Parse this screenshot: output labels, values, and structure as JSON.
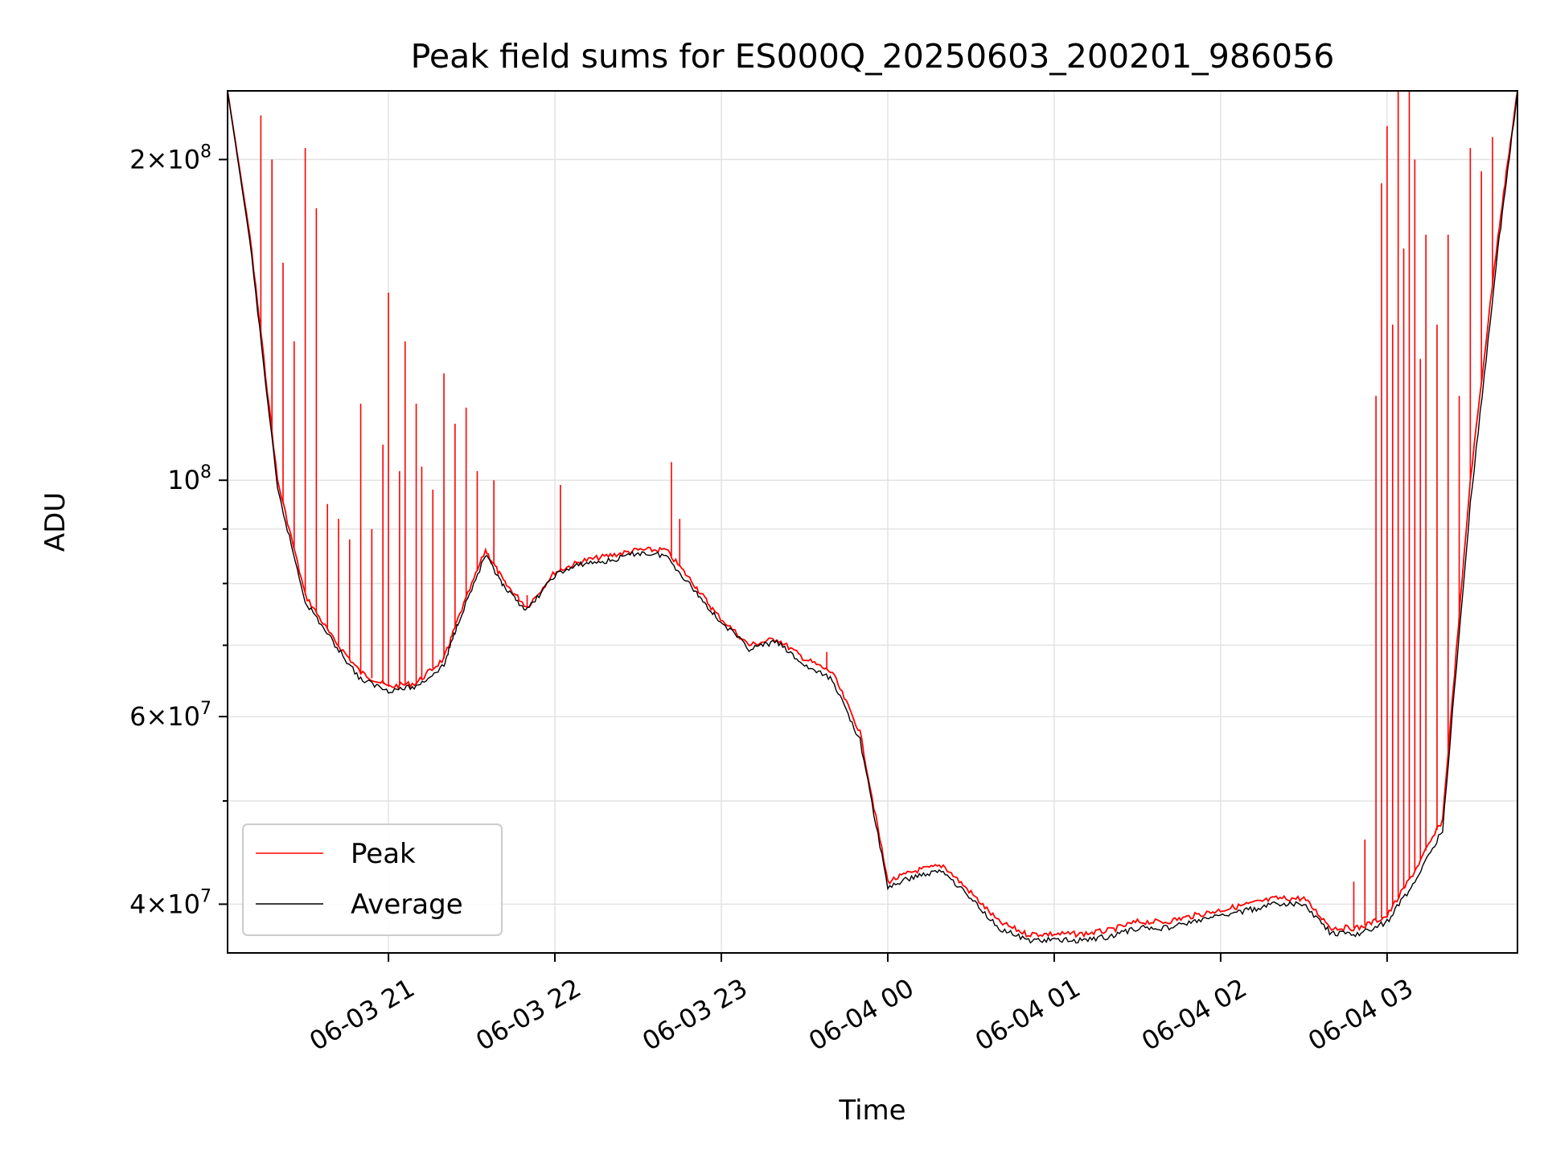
{
  "chart_data": {
    "type": "line",
    "title": "Peak field sums for ES000Q_20250603_200201_986056",
    "xlabel": "Time",
    "ylabel": "ADU",
    "yscale": "log",
    "xlim": [
      "2025-06-03 20:02",
      "2025-06-04 03:47"
    ],
    "ylim": [
      36000000,
      232000000
    ],
    "x_ticks": [
      "2025-06-03 21:00",
      "2025-06-03 22:00",
      "2025-06-03 23:00",
      "2025-06-04 00:00",
      "2025-06-04 01:00",
      "2025-06-04 02:00",
      "2025-06-04 03:00"
    ],
    "x_tick_labels": [
      "06-03 21",
      "06-03 22",
      "06-03 23",
      "06-04 00",
      "06-04 01",
      "06-04 02",
      "06-04 03"
    ],
    "y_major_ticks": [
      {
        "value": 40000000,
        "mant": "4",
        "exp": "7"
      },
      {
        "value": 60000000,
        "mant": "6",
        "exp": "7"
      },
      {
        "value": 100000000,
        "mant": "",
        "exp": "8"
      },
      {
        "value": 200000000,
        "mant": "2",
        "exp": "8"
      }
    ],
    "y_minor_ticks": [
      50000000,
      70000000,
      80000000,
      90000000
    ],
    "grid": true,
    "legend_position": "lower-left",
    "series": [
      {
        "name": "Peak",
        "color": "#ff0000",
        "x": [
          "2025-06-03 20:02",
          "2025-06-03 20:10",
          "2025-06-03 20:20",
          "2025-06-03 20:30",
          "2025-06-03 20:40",
          "2025-06-03 20:50",
          "2025-06-03 21:00",
          "2025-06-03 21:10",
          "2025-06-03 21:20",
          "2025-06-03 21:25",
          "2025-06-03 21:35",
          "2025-06-03 21:42",
          "2025-06-03 21:50",
          "2025-06-03 22:00",
          "2025-06-03 22:10",
          "2025-06-03 22:20",
          "2025-06-03 22:30",
          "2025-06-03 22:40",
          "2025-06-03 22:50",
          "2025-06-03 22:58",
          "2025-06-03 23:10",
          "2025-06-03 23:20",
          "2025-06-03 23:30",
          "2025-06-03 23:40",
          "2025-06-03 23:50",
          "2025-06-04 00:00",
          "2025-06-04 00:10",
          "2025-06-04 00:20",
          "2025-06-04 00:30",
          "2025-06-04 00:40",
          "2025-06-04 00:50",
          "2025-06-04 01:00",
          "2025-06-04 01:10",
          "2025-06-04 01:20",
          "2025-06-04 01:30",
          "2025-06-04 01:40",
          "2025-06-04 01:50",
          "2025-06-04 02:00",
          "2025-06-04 02:10",
          "2025-06-04 02:20",
          "2025-06-04 02:30",
          "2025-06-04 02:40",
          "2025-06-04 02:50",
          "2025-06-04 03:00",
          "2025-06-04 03:10",
          "2025-06-04 03:20",
          "2025-06-04 03:30",
          "2025-06-04 03:40",
          "2025-06-04 03:47"
        ],
        "y": [
          232000000,
          170000000,
          100000000,
          78000000,
          71000000,
          66000000,
          64000000,
          64500000,
          68000000,
          74000000,
          86000000,
          80000000,
          76000000,
          82000000,
          84000000,
          85000000,
          86000000,
          86000000,
          80000000,
          75000000,
          70000000,
          71000000,
          68000000,
          66000000,
          58000000,
          42000000,
          43000000,
          43500000,
          41000000,
          38500000,
          37500000,
          37500000,
          37500000,
          37800000,
          38500000,
          38500000,
          39000000,
          39500000,
          40000000,
          40500000,
          40500000,
          38000000,
          38000000,
          39000000,
          43000000,
          48000000,
          100000000,
          170000000,
          232000000
        ],
        "spikes": [
          [
            "2025-06-03 20:14",
            220000000
          ],
          [
            "2025-06-03 20:18",
            200000000
          ],
          [
            "2025-06-03 20:22",
            160000000
          ],
          [
            "2025-06-03 20:26",
            135000000
          ],
          [
            "2025-06-03 20:30",
            205000000
          ],
          [
            "2025-06-03 20:34",
            180000000
          ],
          [
            "2025-06-03 20:38",
            95000000
          ],
          [
            "2025-06-03 20:42",
            92000000
          ],
          [
            "2025-06-03 20:46",
            88000000
          ],
          [
            "2025-06-03 20:50",
            118000000
          ],
          [
            "2025-06-03 20:54",
            90000000
          ],
          [
            "2025-06-03 20:58",
            108000000
          ],
          [
            "2025-06-03 21:00",
            150000000
          ],
          [
            "2025-06-03 21:04",
            102000000
          ],
          [
            "2025-06-03 21:06",
            135000000
          ],
          [
            "2025-06-03 21:10",
            118000000
          ],
          [
            "2025-06-03 21:12",
            103000000
          ],
          [
            "2025-06-03 21:16",
            98000000
          ],
          [
            "2025-06-03 21:20",
            126000000
          ],
          [
            "2025-06-03 21:24",
            113000000
          ],
          [
            "2025-06-03 21:28",
            117000000
          ],
          [
            "2025-06-03 21:32",
            102000000
          ],
          [
            "2025-06-03 21:38",
            100000000
          ],
          [
            "2025-06-03 21:50",
            78000000
          ],
          [
            "2025-06-03 22:02",
            99000000
          ],
          [
            "2025-06-03 22:40",
            86000000
          ],
          [
            "2025-06-03 22:42",
            104000000
          ],
          [
            "2025-06-03 22:45",
            92000000
          ],
          [
            "2025-06-03 23:38",
            69000000
          ],
          [
            "2025-06-04 02:48",
            42000000
          ],
          [
            "2025-06-04 02:52",
            46000000
          ],
          [
            "2025-06-04 02:56",
            120000000
          ],
          [
            "2025-06-04 02:58",
            190000000
          ],
          [
            "2025-06-04 03:00",
            215000000
          ],
          [
            "2025-06-04 03:02",
            140000000
          ],
          [
            "2025-06-04 03:04",
            232000000
          ],
          [
            "2025-06-04 03:06",
            165000000
          ],
          [
            "2025-06-04 03:08",
            232000000
          ],
          [
            "2025-06-04 03:10",
            200000000
          ],
          [
            "2025-06-04 03:12",
            130000000
          ],
          [
            "2025-06-04 03:14",
            170000000
          ],
          [
            "2025-06-04 03:18",
            140000000
          ],
          [
            "2025-06-04 03:22",
            170000000
          ],
          [
            "2025-06-04 03:26",
            120000000
          ],
          [
            "2025-06-04 03:30",
            205000000
          ],
          [
            "2025-06-04 03:34",
            195000000
          ],
          [
            "2025-06-04 03:38",
            210000000
          ]
        ]
      },
      {
        "name": "Average",
        "color": "#000000",
        "x": [
          "2025-06-03 20:02",
          "2025-06-03 20:10",
          "2025-06-03 20:20",
          "2025-06-03 20:30",
          "2025-06-03 20:40",
          "2025-06-03 20:50",
          "2025-06-03 21:00",
          "2025-06-03 21:10",
          "2025-06-03 21:20",
          "2025-06-03 21:25",
          "2025-06-03 21:35",
          "2025-06-03 21:42",
          "2025-06-03 21:50",
          "2025-06-03 22:00",
          "2025-06-03 22:10",
          "2025-06-03 22:20",
          "2025-06-03 22:30",
          "2025-06-03 22:40",
          "2025-06-03 22:50",
          "2025-06-03 22:58",
          "2025-06-03 23:10",
          "2025-06-03 23:20",
          "2025-06-03 23:30",
          "2025-06-03 23:40",
          "2025-06-03 23:50",
          "2025-06-04 00:00",
          "2025-06-04 00:10",
          "2025-06-04 00:20",
          "2025-06-04 00:30",
          "2025-06-04 00:40",
          "2025-06-04 00:50",
          "2025-06-04 01:00",
          "2025-06-04 01:10",
          "2025-06-04 01:20",
          "2025-06-04 01:30",
          "2025-06-04 01:40",
          "2025-06-04 01:50",
          "2025-06-04 02:00",
          "2025-06-04 02:10",
          "2025-06-04 02:20",
          "2025-06-04 02:30",
          "2025-06-04 02:40",
          "2025-06-04 02:50",
          "2025-06-04 03:00",
          "2025-06-04 03:10",
          "2025-06-04 03:20",
          "2025-06-04 03:30",
          "2025-06-04 03:40",
          "2025-06-04 03:47"
        ],
        "y": [
          232000000,
          168000000,
          98000000,
          77000000,
          70500000,
          65000000,
          63500000,
          64000000,
          67000000,
          73500000,
          85000000,
          79000000,
          75500000,
          81500000,
          83500000,
          84000000,
          85500000,
          85000000,
          79000000,
          74500000,
          69500000,
          70500000,
          67000000,
          65000000,
          57000000,
          41500000,
          42500000,
          43000000,
          40500000,
          38000000,
          37000000,
          37000000,
          37000000,
          37300000,
          38000000,
          38000000,
          38500000,
          39000000,
          39500000,
          40000000,
          40000000,
          37500000,
          37500000,
          38500000,
          42000000,
          47000000,
          95000000,
          165000000,
          232000000
        ]
      }
    ]
  }
}
